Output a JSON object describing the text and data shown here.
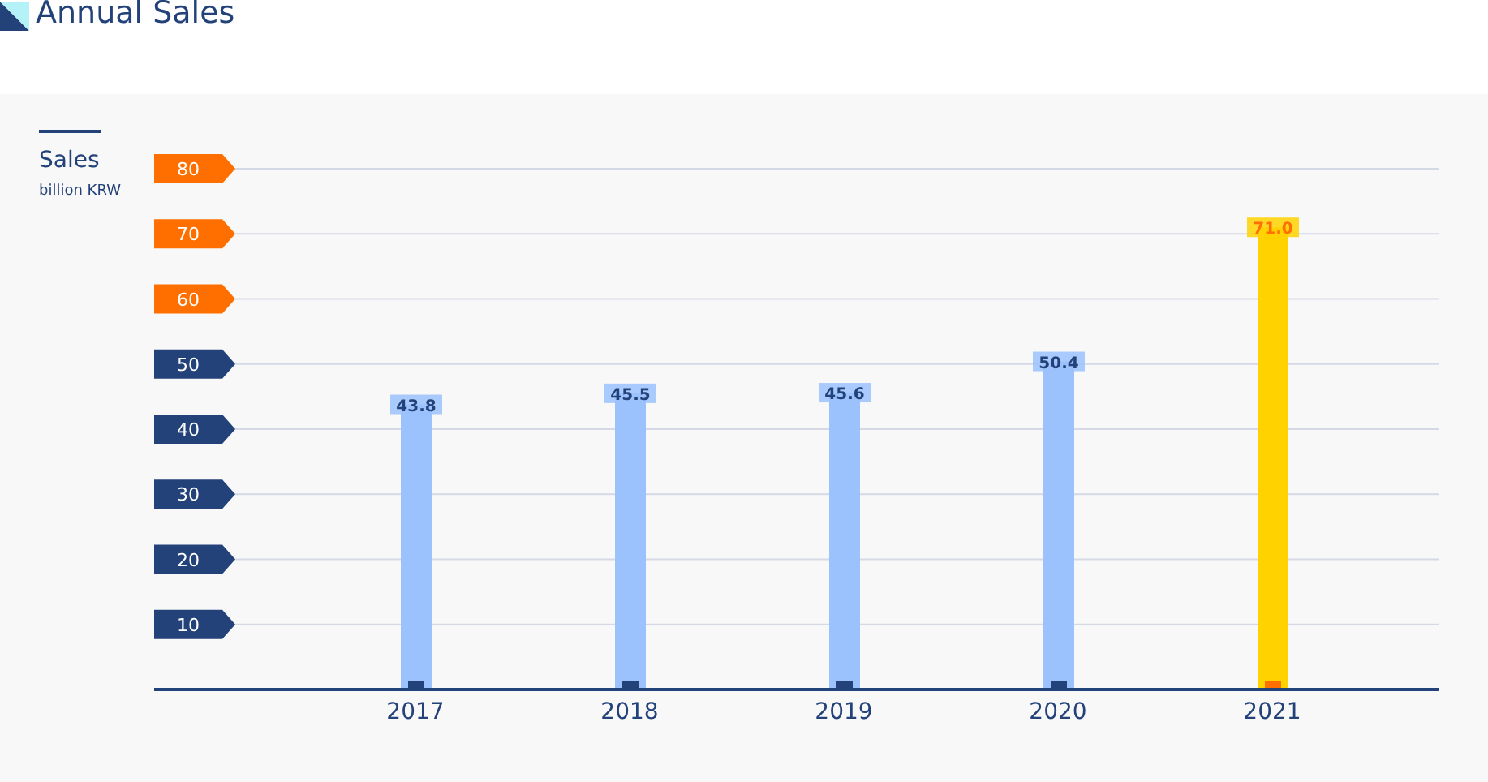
{
  "chart_data": {
    "type": "bar",
    "title": "Annual Sales",
    "ylabel": "Sales",
    "annotations": [
      "billion KRW"
    ],
    "categories": [
      "2017",
      "2018",
      "2019",
      "2020",
      "2021"
    ],
    "values": [
      43.8,
      45.5,
      45.6,
      50.4,
      71.0
    ],
    "colors": [
      "#9bc2fd",
      "#9bc2fd",
      "#9bc2fd",
      "#9bc2fd",
      "#ffd200"
    ],
    "value_labels": [
      "43.8",
      "45.5",
      "45.6",
      "50.4",
      "71.0"
    ],
    "ylim": [
      0,
      80
    ],
    "yticks": [
      {
        "value": 0,
        "label": null
      },
      10,
      20,
      30,
      40,
      50,
      60,
      70,
      80
    ],
    "grid": "y"
  }
}
